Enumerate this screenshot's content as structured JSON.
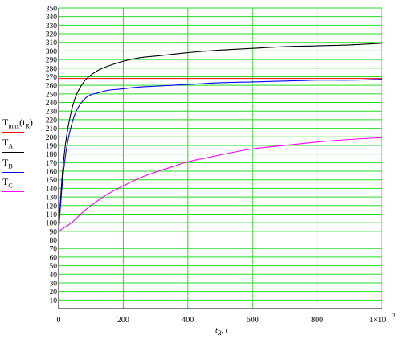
{
  "chart_data": {
    "type": "line",
    "xlim": [
      0,
      1000
    ],
    "ylim": [
      0,
      350
    ],
    "x_ticks": [
      0,
      200,
      400,
      600,
      800
    ],
    "x_tick_labels": [
      "0",
      "200",
      "400",
      "600",
      "800"
    ],
    "x_end_label": "1×10",
    "x_end_exp": "3",
    "y_ticks": [
      10,
      20,
      30,
      40,
      50,
      60,
      70,
      80,
      90,
      100,
      110,
      120,
      130,
      140,
      150,
      160,
      170,
      180,
      190,
      200,
      210,
      220,
      230,
      240,
      250,
      260,
      270,
      280,
      290,
      300,
      310,
      320,
      330,
      340,
      350
    ],
    "grid": true,
    "grid_color": "#22dd22",
    "xlabel_main": "t",
    "xlabel_sub": "R",
    "xlabel_rest": ", t",
    "legend": [
      {
        "name": "Tmax(tR)",
        "base": "T",
        "sub": "max",
        "tail": "(t",
        "tail_sub": "R",
        "tail_end": ")",
        "color": "#ff0000"
      },
      {
        "name": "TA",
        "base": "T",
        "sub": "A",
        "color": "#000000"
      },
      {
        "name": "TB",
        "base": "T",
        "sub": "B",
        "color": "#0000ff"
      },
      {
        "name": "TC",
        "base": "T",
        "sub": "C",
        "color": "#ff00ff"
      }
    ],
    "series": [
      {
        "name": "Tmax(tR)",
        "color": "#ff0000",
        "x": [
          0,
          1000
        ],
        "y": [
          268,
          268
        ]
      },
      {
        "name": "TA",
        "color": "#000000",
        "x": [
          0,
          10,
          20,
          30,
          40,
          50,
          60,
          80,
          100,
          120,
          150,
          200,
          250,
          300,
          400,
          500,
          600,
          700,
          800,
          900,
          1000
        ],
        "y": [
          90,
          150,
          188,
          213,
          231,
          244,
          253,
          265,
          272,
          277,
          282,
          288,
          292,
          294,
          298,
          301,
          303,
          305,
          306,
          307,
          309
        ]
      },
      {
        "name": "TB",
        "color": "#0000ff",
        "x": [
          0,
          10,
          20,
          30,
          40,
          50,
          60,
          80,
          100,
          120,
          150,
          200,
          250,
          300,
          400,
          500,
          600,
          700,
          800,
          900,
          1000
        ],
        "y": [
          90,
          140,
          175,
          198,
          214,
          226,
          234,
          244,
          249,
          251,
          254,
          256,
          258,
          259,
          261,
          263,
          264,
          265,
          266,
          266,
          267
        ]
      },
      {
        "name": "TC",
        "color": "#ff00ff",
        "x": [
          0,
          20,
          40,
          60,
          80,
          100,
          150,
          200,
          250,
          300,
          350,
          400,
          450,
          500,
          600,
          700,
          800,
          900,
          1000
        ],
        "y": [
          90,
          95,
          100,
          107,
          114,
          120,
          133,
          143,
          152,
          159,
          165,
          171,
          175,
          179,
          186,
          190,
          194,
          197,
          199
        ]
      }
    ]
  }
}
